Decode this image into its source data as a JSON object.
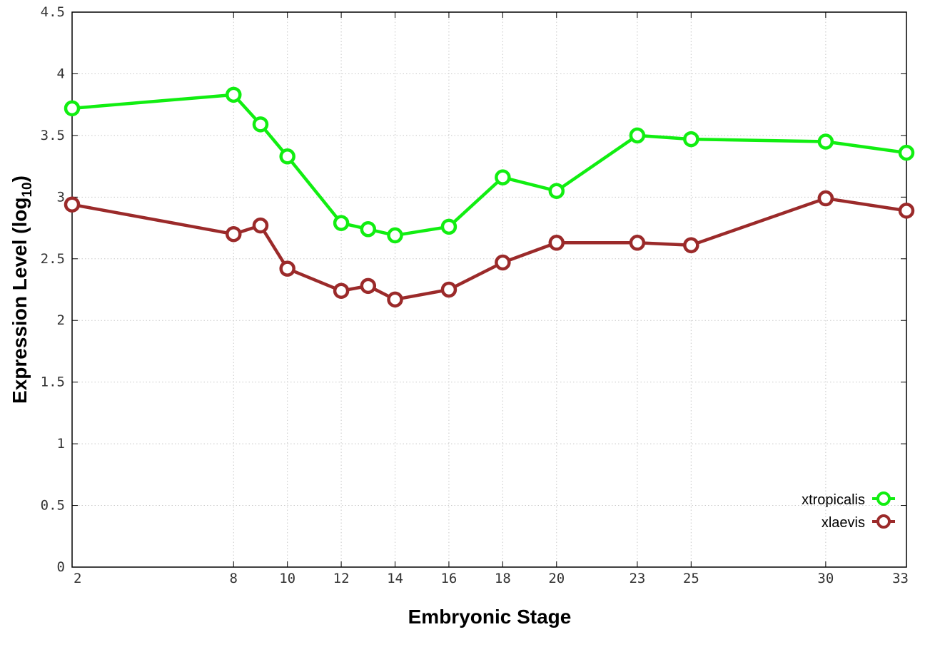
{
  "chart_data": {
    "type": "line",
    "xlabel": "Embryonic Stage",
    "ylabel_main": "Expression Level (log",
    "ylabel_sub": "10",
    "ylabel_close": ")",
    "xlim": [
      2,
      33
    ],
    "ylim": [
      0,
      4.5
    ],
    "x": [
      2,
      8,
      9,
      10,
      12,
      13,
      14,
      16,
      18,
      20,
      23,
      25,
      30,
      33
    ],
    "x_tick_labels": [
      "2",
      "8",
      "10",
      "12",
      "14",
      "16",
      "18",
      "20",
      "23",
      "25",
      "30",
      "33"
    ],
    "x_ticks": [
      2,
      8,
      10,
      12,
      14,
      16,
      18,
      20,
      23,
      25,
      30,
      33
    ],
    "y_tick_labels": [
      "0",
      "0.5",
      "1",
      "1.5",
      "2",
      "2.5",
      "3",
      "3.5",
      "4",
      "4.5"
    ],
    "y_ticks": [
      0,
      0.5,
      1,
      1.5,
      2,
      2.5,
      3,
      3.5,
      4,
      4.5
    ],
    "grid": true,
    "legend_position": "bottom-right",
    "series": [
      {
        "name": "xtropicalis",
        "color": "#11ee11",
        "values": [
          3.72,
          3.83,
          3.59,
          3.33,
          2.79,
          2.74,
          2.69,
          2.76,
          3.16,
          3.05,
          3.5,
          3.47,
          3.45,
          3.36
        ]
      },
      {
        "name": "xlaevis",
        "color": "#9b2a2a",
        "values": [
          2.94,
          2.7,
          2.77,
          2.42,
          2.24,
          2.28,
          2.17,
          2.25,
          2.47,
          2.63,
          2.63,
          2.61,
          2.99,
          2.89
        ]
      }
    ]
  }
}
